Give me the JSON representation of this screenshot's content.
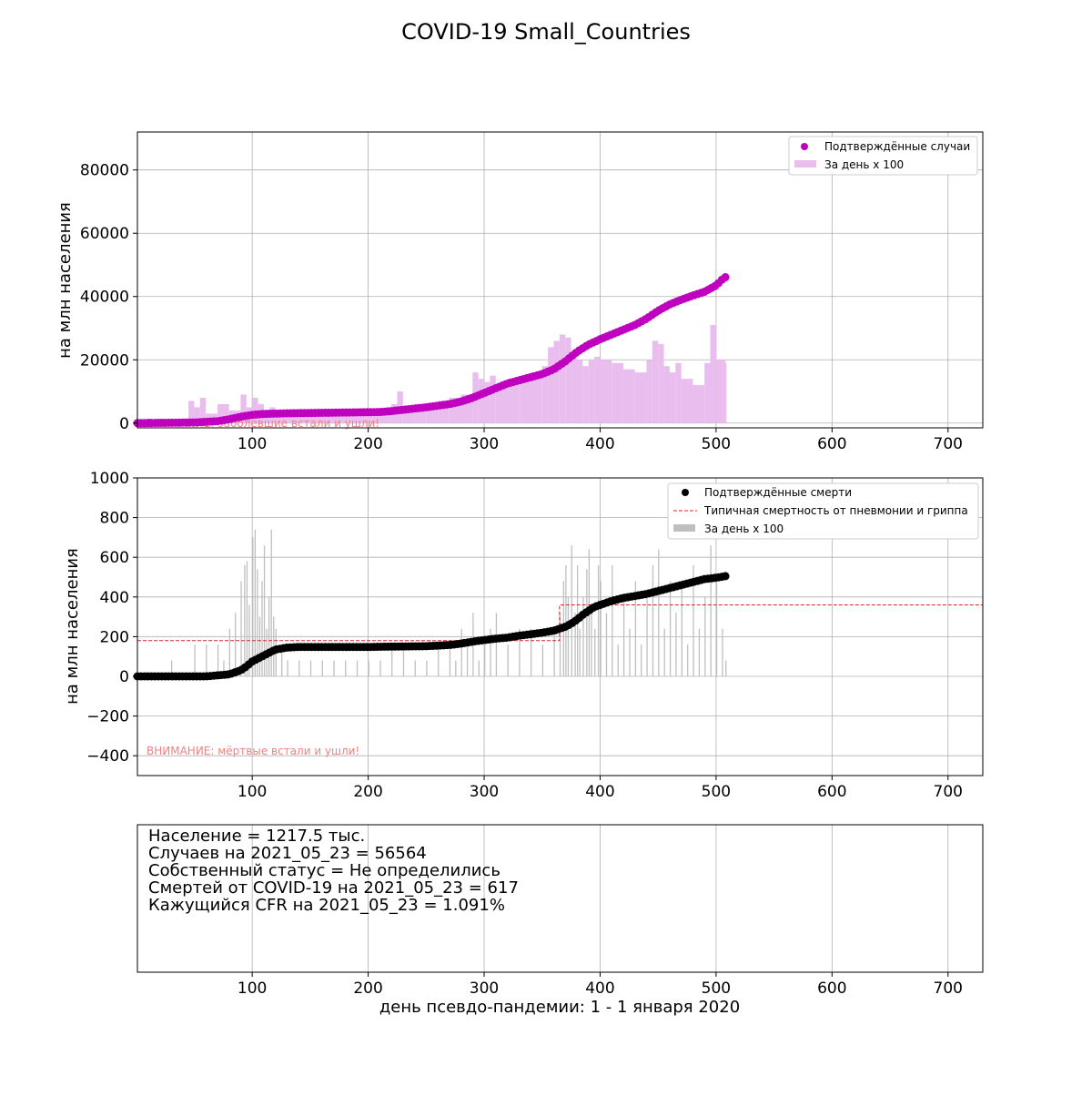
{
  "figure": {
    "title": "COVID-19 Small_Countries"
  },
  "chart_data": [
    {
      "type": "scatter",
      "panel": "cases",
      "ylabel": "на млн населения",
      "xlim": [
        1,
        730
      ],
      "ylim": [
        -1500,
        92000
      ],
      "xticks": [
        100,
        200,
        300,
        400,
        500,
        600,
        700
      ],
      "yticks": [
        0,
        20000,
        40000,
        60000,
        80000
      ],
      "grid": true,
      "legend_position": "top-right",
      "series": [
        {
          "name": "Подтверждённые случаи",
          "kind": "scatter",
          "color": "#bf00bf",
          "x": [
            1,
            50,
            70,
            80,
            90,
            100,
            110,
            120,
            130,
            150,
            170,
            190,
            210,
            220,
            230,
            250,
            270,
            280,
            290,
            300,
            310,
            320,
            330,
            340,
            350,
            360,
            370,
            380,
            390,
            400,
            410,
            420,
            430,
            440,
            450,
            460,
            470,
            480,
            490,
            500,
            505,
            508
          ],
          "y": [
            0,
            200,
            600,
            1200,
            2000,
            2600,
            2900,
            3000,
            3100,
            3200,
            3300,
            3400,
            3500,
            3800,
            4200,
            5000,
            6000,
            6800,
            8000,
            9500,
            11000,
            12500,
            13500,
            14500,
            15500,
            17000,
            19500,
            22500,
            24800,
            26500,
            28000,
            29500,
            31000,
            33000,
            35500,
            37500,
            39000,
            40300,
            41500,
            43500,
            45300,
            46100
          ]
        },
        {
          "name": "За день х 100",
          "kind": "bar",
          "color": "#e9bdee",
          "x": [
            1,
            20,
            40,
            45,
            50,
            55,
            60,
            70,
            80,
            90,
            95,
            100,
            105,
            110,
            115,
            120,
            140,
            160,
            180,
            200,
            210,
            220,
            225,
            230,
            240,
            250,
            260,
            270,
            280,
            290,
            295,
            300,
            305,
            310,
            320,
            330,
            340,
            350,
            355,
            360,
            365,
            370,
            375,
            380,
            385,
            390,
            395,
            400,
            410,
            420,
            430,
            440,
            445,
            450,
            455,
            460,
            465,
            470,
            480,
            490,
            495,
            500,
            505,
            508
          ],
          "y": [
            0,
            500,
            1500,
            7000,
            5000,
            8000,
            3000,
            6000,
            4000,
            9000,
            5000,
            8000,
            6000,
            4000,
            5000,
            3000,
            3500,
            3000,
            4000,
            3500,
            4500,
            6000,
            10000,
            4000,
            5000,
            6000,
            7000,
            8000,
            9000,
            16000,
            14000,
            13000,
            15000,
            12000,
            14000,
            15000,
            16000,
            18000,
            24000,
            26000,
            28000,
            27000,
            22000,
            20000,
            18000,
            20000,
            21000,
            20000,
            19000,
            17000,
            16000,
            20000,
            26000,
            25000,
            18000,
            16000,
            19000,
            14000,
            12000,
            19000,
            31000,
            20000,
            20000,
            19000
          ]
        }
      ],
      "annotation": "ВНИМАНИЕ: заболевшие встали и ушли!"
    },
    {
      "type": "scatter",
      "panel": "deaths",
      "ylabel": "на млн населения",
      "xlim": [
        1,
        730
      ],
      "ylim": [
        -500,
        1000
      ],
      "xticks": [
        100,
        200,
        300,
        400,
        500,
        600,
        700
      ],
      "yticks": [
        -400,
        -200,
        0,
        200,
        400,
        600,
        800,
        1000
      ],
      "grid": true,
      "legend_position": "top-right",
      "series": [
        {
          "name": "Подтверждённые смерти",
          "kind": "scatter",
          "color": "#000000",
          "x": [
            1,
            40,
            60,
            70,
            80,
            85,
            90,
            95,
            100,
            105,
            110,
            115,
            120,
            130,
            140,
            160,
            180,
            200,
            220,
            250,
            270,
            280,
            290,
            300,
            310,
            320,
            330,
            340,
            350,
            360,
            365,
            370,
            375,
            380,
            385,
            390,
            395,
            400,
            410,
            420,
            430,
            440,
            450,
            460,
            470,
            480,
            490,
            500,
            508
          ],
          "y": [
            0,
            0,
            0,
            5,
            10,
            20,
            30,
            50,
            75,
            90,
            105,
            120,
            135,
            145,
            148,
            148,
            148,
            148,
            150,
            152,
            158,
            165,
            175,
            183,
            190,
            195,
            205,
            212,
            220,
            230,
            240,
            250,
            265,
            285,
            310,
            330,
            350,
            360,
            380,
            395,
            405,
            415,
            430,
            445,
            460,
            475,
            490,
            497,
            505
          ]
        },
        {
          "name": "Типичная смертность от пневмонии и гриппа",
          "kind": "line",
          "color": "#d62728",
          "x": [
            1,
            365,
            365,
            730
          ],
          "y": [
            180,
            180,
            360,
            360
          ]
        },
        {
          "name": "За день х 100",
          "kind": "bar",
          "color": "#bfbfbf",
          "x": [
            30,
            50,
            60,
            70,
            75,
            80,
            85,
            90,
            93,
            95,
            97,
            100,
            102,
            104,
            106,
            108,
            110,
            112,
            114,
            116,
            118,
            120,
            125,
            130,
            140,
            150,
            160,
            170,
            180,
            190,
            200,
            210,
            220,
            230,
            240,
            250,
            260,
            270,
            275,
            280,
            285,
            290,
            295,
            300,
            305,
            310,
            320,
            330,
            340,
            350,
            360,
            365,
            368,
            370,
            372,
            375,
            378,
            380,
            382,
            385,
            388,
            390,
            392,
            395,
            398,
            400,
            405,
            410,
            415,
            420,
            425,
            430,
            435,
            440,
            445,
            450,
            455,
            460,
            465,
            470,
            475,
            480,
            485,
            490,
            495,
            500,
            505,
            508
          ],
          "y": [
            80,
            160,
            160,
            160,
            80,
            240,
            320,
            480,
            560,
            580,
            360,
            700,
            740,
            540,
            300,
            480,
            660,
            240,
            400,
            740,
            300,
            240,
            160,
            80,
            80,
            80,
            80,
            80,
            80,
            80,
            80,
            80,
            160,
            160,
            80,
            80,
            160,
            160,
            80,
            240,
            160,
            320,
            80,
            160,
            240,
            320,
            160,
            240,
            240,
            160,
            240,
            320,
            480,
            560,
            400,
            660,
            320,
            560,
            240,
            400,
            540,
            640,
            320,
            240,
            560,
            480,
            320,
            560,
            160,
            400,
            240,
            480,
            160,
            400,
            560,
            640,
            240,
            480,
            320,
            480,
            160,
            560,
            240,
            400,
            660,
            480,
            240,
            80
          ]
        }
      ],
      "annotation": "ВНИМАНИЕ: мёртвые встали и ушли!"
    }
  ],
  "info_panel": {
    "lines": [
      "Население = 1217.5 тыс.",
      "Случаев на 2021_05_23 = 56564",
      "Собственный статус = Не определились",
      "Смертей от COVID-19 на 2021_05_23 = 617",
      "Кажущийся CFR на 2021_05_23 = 1.091%"
    ],
    "xlabel": "день псевдо-пандемии: 1 - 1 января 2020",
    "xticks": [
      100,
      200,
      300,
      400,
      500,
      600,
      700
    ],
    "xlim": [
      1,
      730
    ]
  }
}
